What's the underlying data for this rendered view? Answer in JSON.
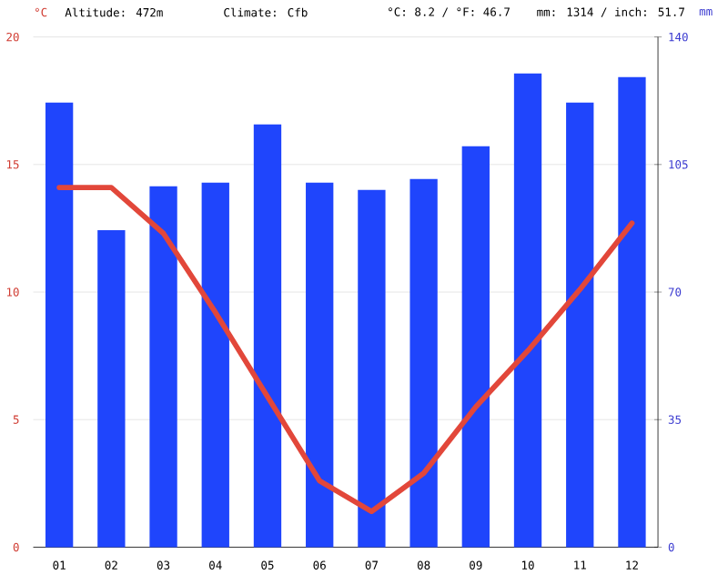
{
  "chart_data": {
    "type": "bar",
    "categories": [
      "01",
      "02",
      "03",
      "04",
      "05",
      "06",
      "07",
      "08",
      "09",
      "10",
      "11",
      "12"
    ],
    "series": [
      {
        "type": "line",
        "color": "#e2473a",
        "values": [
          14.1,
          14.1,
          12.3,
          9.2,
          5.9,
          2.6,
          1.4,
          2.9,
          5.5,
          7.7,
          10.1,
          12.7
        ]
      },
      {
        "axis": "y2",
        "color": "#1f45fc",
        "values": [
          122,
          87,
          99,
          100,
          116,
          100,
          98,
          101,
          110,
          130,
          122,
          129
        ]
      }
    ],
    "ylabel": "°C",
    "y2label": "mm",
    "ylim": [
      0,
      20
    ],
    "yticks": [
      0,
      5,
      10,
      15,
      20
    ],
    "y2lim": [
      0,
      140
    ],
    "y2ticks": [
      0,
      35,
      70,
      105,
      140
    ],
    "annotations": [
      "Altitude: 472m",
      "Climate: Cfb",
      "°C: 8.2 / °F: 46.7",
      "mm: 1314 / inch: 51.7"
    ],
    "grid": "y",
    "line_style": "solid"
  }
}
